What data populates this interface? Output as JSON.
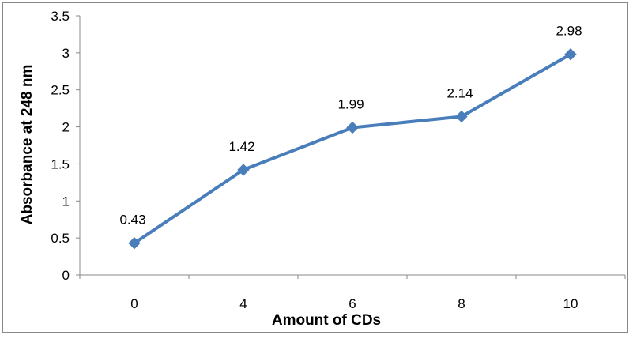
{
  "chart_data": {
    "type": "line",
    "title": "",
    "xlabel": "Amount of CDs",
    "ylabel": "Absorbance at 248 nm",
    "categories": [
      "0",
      "4",
      "6",
      "8",
      "10"
    ],
    "series": [
      {
        "values": [
          0.43,
          1.42,
          1.99,
          2.14,
          2.98
        ],
        "color": "#4a7ebb",
        "marker": "diamond"
      }
    ],
    "data_labels": [
      "0.43",
      "1.42",
      "1.99",
      "2.14",
      "2.98"
    ],
    "y_ticks": [
      "0",
      "0.5",
      "1",
      "1.5",
      "2",
      "2.5",
      "3",
      "3.5"
    ],
    "ylim": [
      0,
      3.5
    ],
    "grid": {
      "horizontal": false,
      "vertical": false
    },
    "legend": "none"
  }
}
